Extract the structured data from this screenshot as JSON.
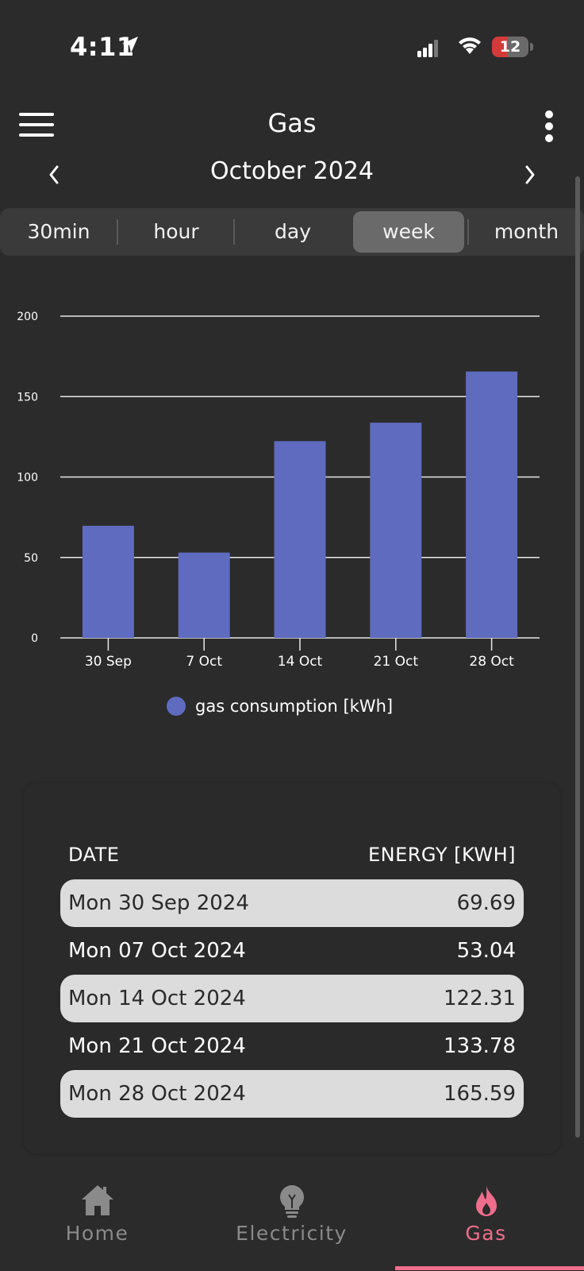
{
  "status_bar": {
    "time": "4:11",
    "battery": "12"
  },
  "header": {
    "title": "Gas",
    "period": "October 2024"
  },
  "segments": {
    "items": [
      "30min",
      "hour",
      "day",
      "week",
      "month"
    ],
    "selected": "week"
  },
  "chart_data": {
    "type": "bar",
    "categories": [
      "30 Sep",
      "7 Oct",
      "14 Oct",
      "21 Oct",
      "28 Oct"
    ],
    "series": [
      {
        "name": "gas consumption [kWh]",
        "values": [
          69.69,
          53.04,
          122.31,
          133.78,
          165.59
        ],
        "color": "#5f6bbf"
      }
    ],
    "yticks": [
      0,
      50,
      100,
      150,
      200
    ],
    "ylim": [
      0,
      200
    ],
    "grid": true,
    "legend_position": "bottom"
  },
  "table": {
    "headers": {
      "date": "DATE",
      "energy": "ENERGY [KWH]"
    },
    "rows": [
      {
        "date": "Mon 30 Sep 2024",
        "value": "69.69"
      },
      {
        "date": "Mon 07 Oct 2024",
        "value": "53.04"
      },
      {
        "date": "Mon 14 Oct 2024",
        "value": "122.31"
      },
      {
        "date": "Mon 21 Oct 2024",
        "value": "133.78"
      },
      {
        "date": "Mon 28 Oct 2024",
        "value": "165.59"
      }
    ]
  },
  "bottom_nav": {
    "items": [
      {
        "label": "Home",
        "icon": "home-icon"
      },
      {
        "label": "Electricity",
        "icon": "lightbulb-icon"
      },
      {
        "label": "Gas",
        "icon": "flame-icon"
      }
    ],
    "active": "Gas",
    "active_color": "#f06e8c",
    "inactive_color": "#8a8a8a"
  }
}
